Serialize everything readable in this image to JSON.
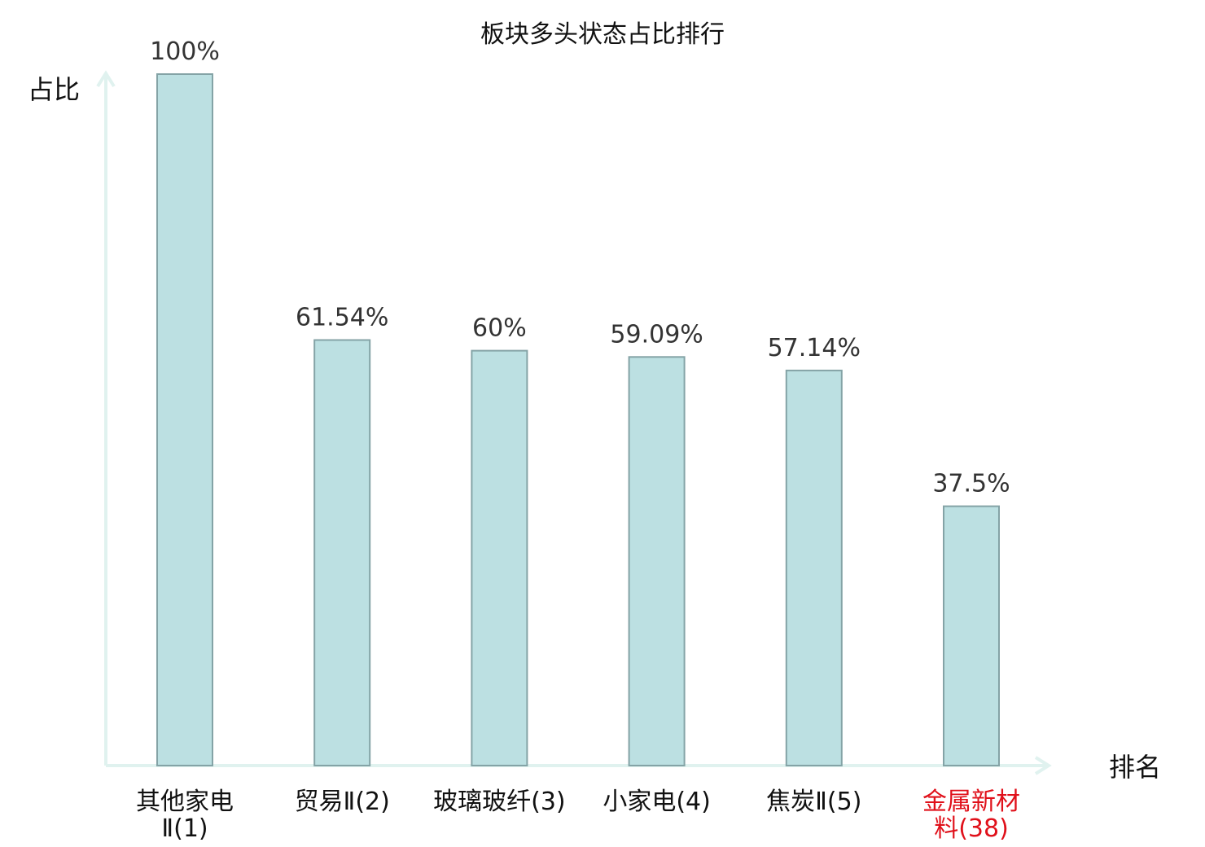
{
  "chart_data": {
    "type": "bar",
    "title": "板块多头状态占比排行",
    "ylabel": "占比",
    "xlabel": "排名",
    "ylim": [
      0,
      100
    ],
    "grid": false,
    "categories": [
      {
        "lines": [
          "其他家电",
          "Ⅱ(1)"
        ],
        "highlight": false
      },
      {
        "lines": [
          "贸易Ⅱ(2)"
        ],
        "highlight": false
      },
      {
        "lines": [
          "玻璃玻纤(3)"
        ],
        "highlight": false
      },
      {
        "lines": [
          "小家电(4)"
        ],
        "highlight": false
      },
      {
        "lines": [
          "焦炭Ⅱ(5)"
        ],
        "highlight": false
      },
      {
        "lines": [
          "金属新材",
          "料(38)"
        ],
        "highlight": true
      }
    ],
    "values": [
      100,
      61.54,
      60,
      59.09,
      57.14,
      37.5
    ],
    "value_labels": [
      "100%",
      "61.54%",
      "60%",
      "59.09%",
      "57.14%",
      "37.5%"
    ]
  },
  "colors": {
    "bar_fill": "#bce0e2",
    "bar_stroke": "#84a3a6",
    "axis": "#e0f2ef",
    "label_text": "#111111",
    "highlight_text": "#e0101a",
    "value_text": "#333333"
  }
}
